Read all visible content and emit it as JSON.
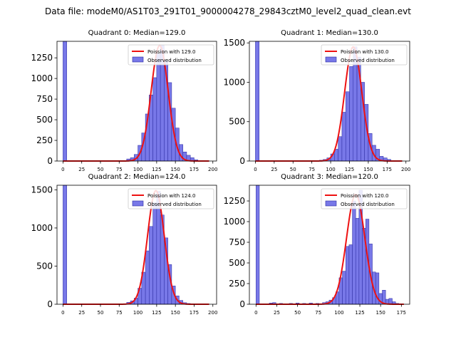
{
  "figure": {
    "suptitle": "Data file: modeM0/AS1T03_291T01_9000004278_29843cztM0_level2_quad_clean.evt"
  },
  "colors": {
    "bar_fill": "#7878e8",
    "bar_edge": "#2a2aa0",
    "fit_line": "#ee1111",
    "axis": "#000000",
    "background": "#ffffff"
  },
  "chart_data": [
    {
      "type": "bar",
      "title": "Quadrant 0: Median=129.0",
      "legend": {
        "placement": "top-right",
        "line_label": "Poission with 129.0",
        "bar_label": "Observed distribution"
      },
      "xlim": [
        -8,
        205
      ],
      "ylim": [
        0,
        1450
      ],
      "xticks": [
        0,
        25,
        50,
        75,
        100,
        125,
        150,
        175,
        200
      ],
      "yticks": [
        0,
        250,
        500,
        750,
        1000,
        1250
      ],
      "bin_width": 5,
      "bins": [
        {
          "x": 0,
          "v": 1450
        },
        {
          "x": 80,
          "v": 5
        },
        {
          "x": 85,
          "v": 25
        },
        {
          "x": 90,
          "v": 40
        },
        {
          "x": 95,
          "v": 80
        },
        {
          "x": 100,
          "v": 190
        },
        {
          "x": 105,
          "v": 340
        },
        {
          "x": 110,
          "v": 570
        },
        {
          "x": 115,
          "v": 800
        },
        {
          "x": 120,
          "v": 1010
        },
        {
          "x": 125,
          "v": 1300
        },
        {
          "x": 130,
          "v": 1400
        },
        {
          "x": 135,
          "v": 1220
        },
        {
          "x": 140,
          "v": 950
        },
        {
          "x": 145,
          "v": 640
        },
        {
          "x": 150,
          "v": 400
        },
        {
          "x": 155,
          "v": 200
        },
        {
          "x": 160,
          "v": 110
        },
        {
          "x": 165,
          "v": 70
        },
        {
          "x": 170,
          "v": 40
        },
        {
          "x": 175,
          "v": 15
        },
        {
          "x": 180,
          "v": 5
        }
      ],
      "fit": {
        "mean": 129.0,
        "peak": 1400,
        "sigma": 11.36,
        "x_range": [
          0,
          195
        ]
      }
    },
    {
      "type": "bar",
      "title": "Quadrant 1: Median=130.0",
      "legend": {
        "placement": "top-right",
        "line_label": "Poission with 130.0",
        "bar_label": "Observed distribution"
      },
      "xlim": [
        -8,
        205
      ],
      "ylim": [
        0,
        1520
      ],
      "xticks": [
        0,
        25,
        50,
        75,
        100,
        125,
        150,
        175,
        200
      ],
      "yticks": [
        0,
        500,
        1000,
        1500
      ],
      "bin_width": 5,
      "bins": [
        {
          "x": 0,
          "v": 1520
        },
        {
          "x": 85,
          "v": 10
        },
        {
          "x": 90,
          "v": 20
        },
        {
          "x": 95,
          "v": 40
        },
        {
          "x": 100,
          "v": 90
        },
        {
          "x": 105,
          "v": 150
        },
        {
          "x": 110,
          "v": 310
        },
        {
          "x": 115,
          "v": 620
        },
        {
          "x": 120,
          "v": 880
        },
        {
          "x": 125,
          "v": 1200
        },
        {
          "x": 130,
          "v": 1450
        },
        {
          "x": 135,
          "v": 1320
        },
        {
          "x": 140,
          "v": 1000
        },
        {
          "x": 145,
          "v": 720
        },
        {
          "x": 150,
          "v": 350
        },
        {
          "x": 155,
          "v": 200
        },
        {
          "x": 160,
          "v": 150
        },
        {
          "x": 165,
          "v": 60
        },
        {
          "x": 170,
          "v": 40
        },
        {
          "x": 175,
          "v": 20
        }
      ],
      "fit": {
        "mean": 130.0,
        "peak": 1450,
        "sigma": 11.4,
        "x_range": [
          0,
          195
        ]
      }
    },
    {
      "type": "bar",
      "title": "Quadrant 2: Median=124.0",
      "legend": {
        "placement": "top-right",
        "line_label": "Poission with 124.0",
        "bar_label": "Observed distribution"
      },
      "xlim": [
        -8,
        205
      ],
      "ylim": [
        0,
        1560
      ],
      "xticks": [
        0,
        25,
        50,
        75,
        100,
        125,
        150,
        175,
        200
      ],
      "yticks": [
        0,
        500,
        1000,
        1500
      ],
      "bin_width": 5,
      "bins": [
        {
          "x": 0,
          "v": 1560
        },
        {
          "x": 80,
          "v": 5
        },
        {
          "x": 85,
          "v": 25
        },
        {
          "x": 90,
          "v": 45
        },
        {
          "x": 95,
          "v": 80
        },
        {
          "x": 100,
          "v": 210
        },
        {
          "x": 105,
          "v": 420
        },
        {
          "x": 110,
          "v": 700
        },
        {
          "x": 115,
          "v": 1020
        },
        {
          "x": 120,
          "v": 1330
        },
        {
          "x": 125,
          "v": 1480
        },
        {
          "x": 130,
          "v": 1170
        },
        {
          "x": 135,
          "v": 870
        },
        {
          "x": 140,
          "v": 520
        },
        {
          "x": 145,
          "v": 240
        },
        {
          "x": 150,
          "v": 110
        },
        {
          "x": 155,
          "v": 50
        },
        {
          "x": 160,
          "v": 20
        },
        {
          "x": 165,
          "v": 10
        }
      ],
      "fit": {
        "mean": 124.0,
        "peak": 1490,
        "sigma": 11.1,
        "x_range": [
          0,
          195
        ]
      }
    },
    {
      "type": "bar",
      "title": "Quadrant 3: Median=120.0",
      "legend": {
        "placement": "top-right",
        "line_label": "Poission with 120.0",
        "bar_label": "Observed distribution"
      },
      "xlim": [
        -8,
        185
      ],
      "ylim": [
        0,
        1440
      ],
      "xticks": [
        0,
        25,
        50,
        75,
        100,
        125,
        150,
        175
      ],
      "yticks": [
        0,
        250,
        500,
        750,
        1000,
        1250
      ],
      "bin_width": 4,
      "bins": [
        {
          "x": 0,
          "v": 1440
        },
        {
          "x": 16,
          "v": 15
        },
        {
          "x": 20,
          "v": 20
        },
        {
          "x": 28,
          "v": 10
        },
        {
          "x": 40,
          "v": 10
        },
        {
          "x": 48,
          "v": 15
        },
        {
          "x": 56,
          "v": 10
        },
        {
          "x": 64,
          "v": 15
        },
        {
          "x": 72,
          "v": 10
        },
        {
          "x": 80,
          "v": 20
        },
        {
          "x": 84,
          "v": 30
        },
        {
          "x": 88,
          "v": 50
        },
        {
          "x": 92,
          "v": 80
        },
        {
          "x": 96,
          "v": 150
        },
        {
          "x": 100,
          "v": 320
        },
        {
          "x": 104,
          "v": 400
        },
        {
          "x": 108,
          "v": 700
        },
        {
          "x": 112,
          "v": 720
        },
        {
          "x": 116,
          "v": 1250
        },
        {
          "x": 120,
          "v": 1040
        },
        {
          "x": 124,
          "v": 1380
        },
        {
          "x": 128,
          "v": 920
        },
        {
          "x": 132,
          "v": 1030
        },
        {
          "x": 136,
          "v": 730
        },
        {
          "x": 140,
          "v": 390
        },
        {
          "x": 144,
          "v": 380
        },
        {
          "x": 148,
          "v": 130
        },
        {
          "x": 152,
          "v": 170
        },
        {
          "x": 156,
          "v": 60
        },
        {
          "x": 160,
          "v": 70
        },
        {
          "x": 164,
          "v": 30
        },
        {
          "x": 168,
          "v": 10
        }
      ],
      "fit": {
        "mean": 120.0,
        "peak": 1330,
        "sigma": 10.95,
        "x_range": [
          0,
          178
        ]
      }
    }
  ]
}
